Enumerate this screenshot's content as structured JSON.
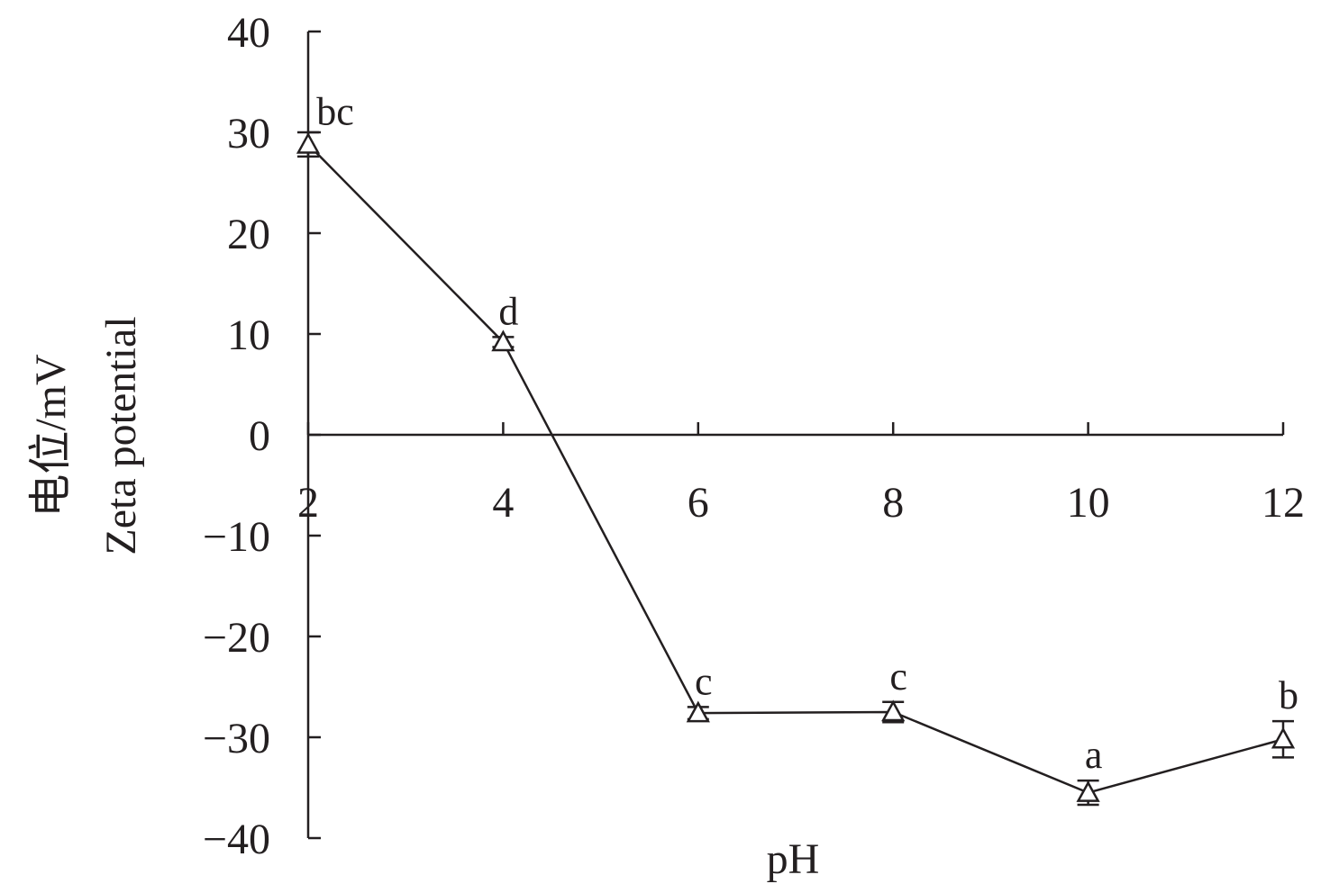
{
  "chart_data": {
    "type": "line",
    "title": "",
    "xlabel": "pH",
    "ylabel": "电位/mV",
    "ylabel_en": "Zeta potential",
    "x": [
      2,
      4,
      6,
      8,
      10,
      12
    ],
    "xlim": [
      2,
      12
    ],
    "ylim": [
      -40,
      40
    ],
    "x_ticks": [
      "2",
      "4",
      "6",
      "8",
      "10",
      "12"
    ],
    "y_ticks": [
      "40",
      "30",
      "20",
      "10",
      "0",
      "−10",
      "−20",
      "−30",
      "−40"
    ],
    "grid": false,
    "legend": "none",
    "marker": "open-triangle",
    "color": "#231f20",
    "series": [
      {
        "values": [
          28.8,
          9.2,
          -27.6,
          -27.5,
          -35.5,
          -30.2
        ],
        "error": [
          1.2,
          0.5,
          0.6,
          1.0,
          1.2,
          1.8
        ],
        "labels": [
          "bc",
          "d",
          "c",
          "c",
          "a",
          "b"
        ]
      }
    ]
  }
}
